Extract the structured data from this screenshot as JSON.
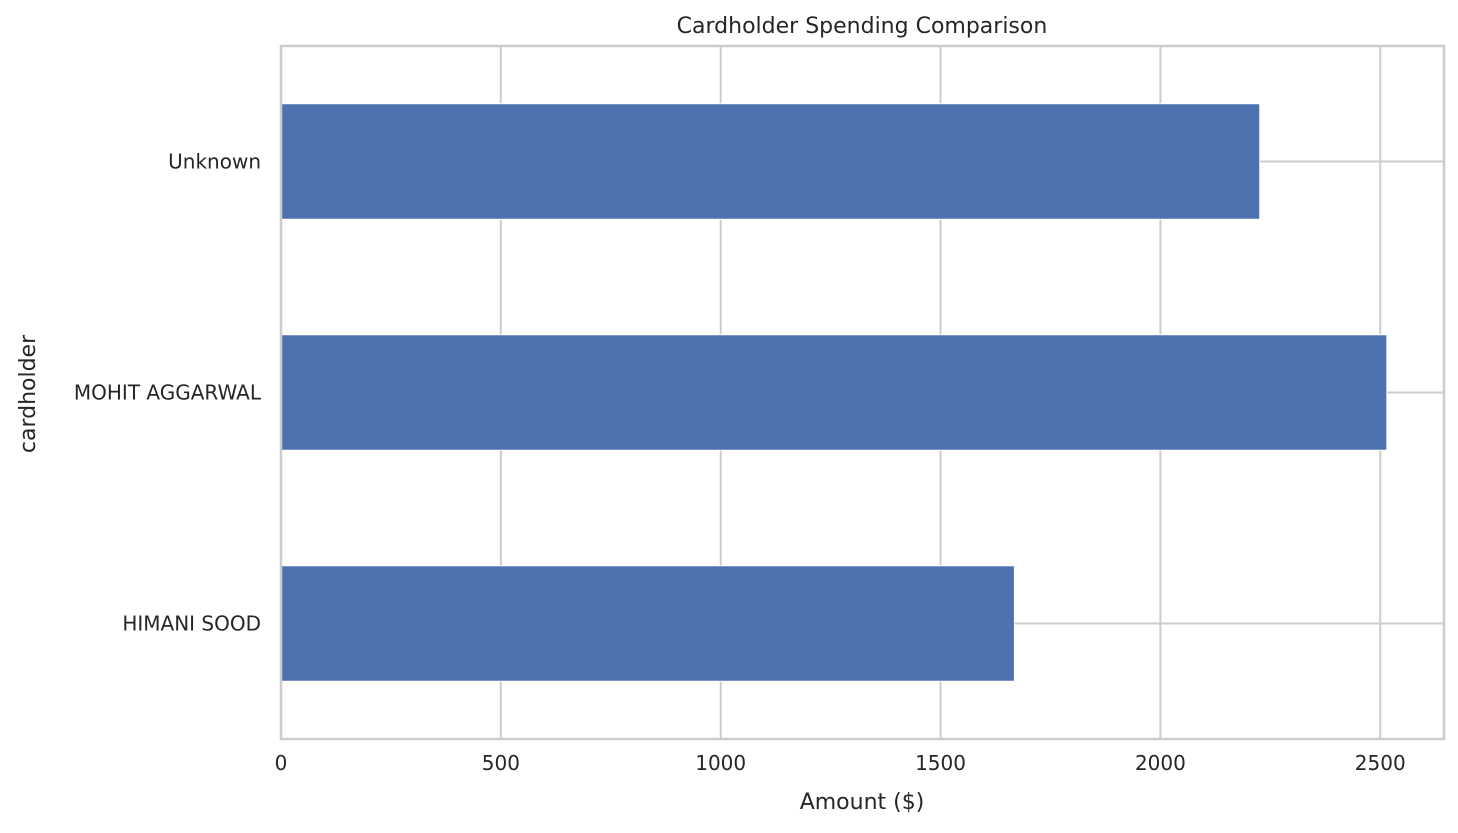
{
  "chart_data": {
    "type": "bar",
    "orientation": "horizontal",
    "title": "Cardholder Spending Comparison",
    "xlabel": "Amount ($)",
    "ylabel": "cardholder",
    "categories": [
      "HIMANI SOOD",
      "MOHIT AGGARWAL",
      "Unknown"
    ],
    "values": [
      1668,
      2515,
      2226
    ],
    "xlim": [
      0,
      2645
    ],
    "xticks": [
      0,
      500,
      1000,
      1500,
      2000,
      2500
    ],
    "grid": true,
    "legend": "none",
    "bar_color": "#4c72b0",
    "grid_color": "#cccccc",
    "spine_color": "#cccccc"
  }
}
